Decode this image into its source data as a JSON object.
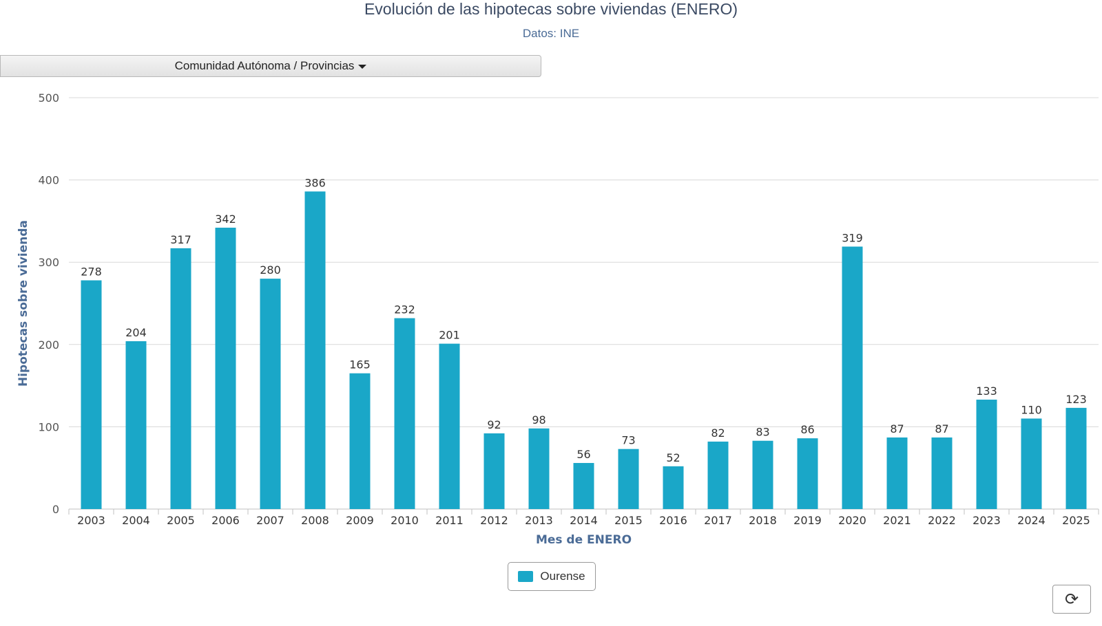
{
  "header": {
    "title": "Evolución de las hipotecas sobre viviendas (ENERO)",
    "subtitle": "Datos: INE"
  },
  "filter": {
    "label": "Comunidad Autónoma / Provincias"
  },
  "refresh": {
    "icon": "refresh-icon",
    "glyph": "⟳"
  },
  "colors": {
    "bar": "#1aa7c8",
    "axis_label": "#4a6b96",
    "grid": "#d8d8d8"
  },
  "chart_data": {
    "type": "bar",
    "title": "Evolución de las hipotecas sobre viviendas (ENERO)",
    "subtitle": "Datos: INE",
    "xlabel": "Mes de ENERO",
    "ylabel": "Hipotecas sobre vivienda",
    "ylim": [
      0,
      500
    ],
    "yticks": [
      0,
      100,
      200,
      300,
      400,
      500
    ],
    "grid": true,
    "legend_position": "bottom-center",
    "categories": [
      "2003",
      "2004",
      "2005",
      "2006",
      "2007",
      "2008",
      "2009",
      "2010",
      "2011",
      "2012",
      "2013",
      "2014",
      "2015",
      "2016",
      "2017",
      "2018",
      "2019",
      "2020",
      "2021",
      "2022",
      "2023",
      "2024",
      "2025"
    ],
    "series": [
      {
        "name": "Ourense",
        "values": [
          278,
          204,
          317,
          342,
          280,
          386,
          165,
          232,
          201,
          92,
          98,
          56,
          73,
          52,
          82,
          83,
          86,
          319,
          87,
          87,
          133,
          110,
          123
        ]
      }
    ]
  }
}
